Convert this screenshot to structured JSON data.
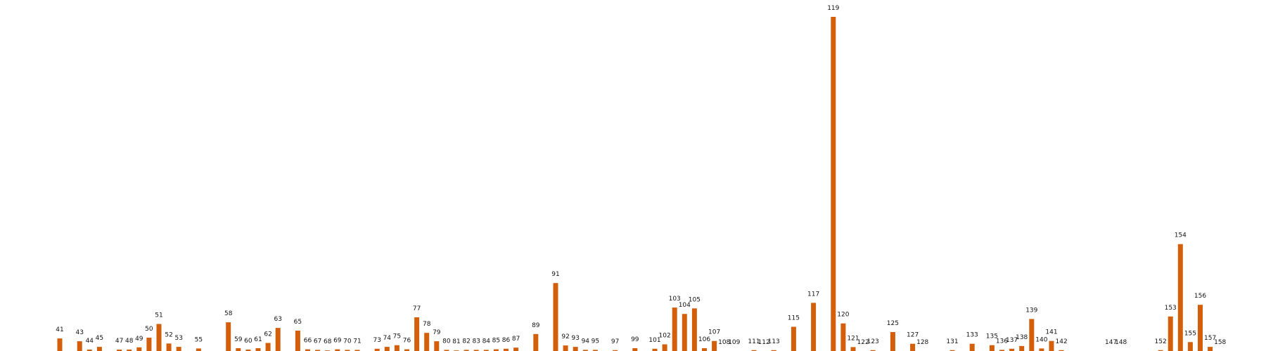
{
  "chart_data": {
    "type": "bar",
    "title": "",
    "xlabel": "",
    "ylabel": "",
    "grid": false,
    "bar_color": "#d35f0a",
    "background": "#ffffff",
    "ylim": [
      0,
      120
    ],
    "bars": [
      {
        "label": "41",
        "value": 4.5
      },
      {
        "label": "43",
        "value": 3.5
      },
      {
        "label": "44",
        "value": 0.5
      },
      {
        "label": "45",
        "value": 1.5
      },
      {
        "label": "47",
        "value": 0.5
      },
      {
        "label": "48",
        "value": 0.5
      },
      {
        "label": "49",
        "value": 1.3
      },
      {
        "label": "50",
        "value": 4.8
      },
      {
        "label": "51",
        "value": 9.7
      },
      {
        "label": "52",
        "value": 2.7
      },
      {
        "label": "53",
        "value": 1.5
      },
      {
        "label": "55",
        "value": 0.9
      },
      {
        "label": "58",
        "value": 10.3
      },
      {
        "label": "59",
        "value": 1.0
      },
      {
        "label": "60",
        "value": 0.5
      },
      {
        "label": "61",
        "value": 1.0
      },
      {
        "label": "62",
        "value": 2.9
      },
      {
        "label": "63",
        "value": 8.3
      },
      {
        "label": "65",
        "value": 7.3
      },
      {
        "label": "66",
        "value": 0.6
      },
      {
        "label": "67",
        "value": 0.4
      },
      {
        "label": "68",
        "value": 0.2
      },
      {
        "label": "69",
        "value": 0.6
      },
      {
        "label": "70",
        "value": 0.4
      },
      {
        "label": "71",
        "value": 0.4
      },
      {
        "label": "73",
        "value": 0.8
      },
      {
        "label": "74",
        "value": 1.5
      },
      {
        "label": "75",
        "value": 2.1
      },
      {
        "label": "76",
        "value": 0.6
      },
      {
        "label": "77",
        "value": 12.1
      },
      {
        "label": "78",
        "value": 6.5
      },
      {
        "label": "79",
        "value": 3.5
      },
      {
        "label": "80",
        "value": 0.4
      },
      {
        "label": "81",
        "value": 0.2
      },
      {
        "label": "82",
        "value": 0.4
      },
      {
        "label": "83",
        "value": 0.4
      },
      {
        "label": "84",
        "value": 0.4
      },
      {
        "label": "85",
        "value": 0.6
      },
      {
        "label": "86",
        "value": 0.8
      },
      {
        "label": "87",
        "value": 1.2
      },
      {
        "label": "89",
        "value": 6.1
      },
      {
        "label": "91",
        "value": 24.4
      },
      {
        "label": "92",
        "value": 2.0
      },
      {
        "label": "93",
        "value": 1.5
      },
      {
        "label": "94",
        "value": 0.4
      },
      {
        "label": "95",
        "value": 0.4
      },
      {
        "label": "97",
        "value": 0.3
      },
      {
        "label": "99",
        "value": 1.0
      },
      {
        "label": "101",
        "value": 0.8
      },
      {
        "label": "102",
        "value": 2.4
      },
      {
        "label": "103",
        "value": 15.6
      },
      {
        "label": "104",
        "value": 13.3
      },
      {
        "label": "105",
        "value": 15.3
      },
      {
        "label": "106",
        "value": 1.0
      },
      {
        "label": "107",
        "value": 3.6
      },
      {
        "label": "108",
        "value": 0
      },
      {
        "label": "109",
        "value": 0
      },
      {
        "label": "111",
        "value": 0.3
      },
      {
        "label": "112",
        "value": 0
      },
      {
        "label": "113",
        "value": 0.3
      },
      {
        "label": "115",
        "value": 8.7
      },
      {
        "label": "117",
        "value": 17.3
      },
      {
        "label": "119",
        "value": 120.0
      },
      {
        "label": "120",
        "value": 9.9
      },
      {
        "label": "121",
        "value": 1.4
      },
      {
        "label": "122",
        "value": 0
      },
      {
        "label": "123",
        "value": 0.3
      },
      {
        "label": "125",
        "value": 6.8
      },
      {
        "label": "127",
        "value": 2.6
      },
      {
        "label": "128",
        "value": 0
      },
      {
        "label": "131",
        "value": 0.3
      },
      {
        "label": "133",
        "value": 2.6
      },
      {
        "label": "135",
        "value": 2.1
      },
      {
        "label": "136",
        "value": 0.4
      },
      {
        "label": "137",
        "value": 0.8
      },
      {
        "label": "138",
        "value": 1.8
      },
      {
        "label": "139",
        "value": 11.5
      },
      {
        "label": "140",
        "value": 0.9
      },
      {
        "label": "141",
        "value": 3.6
      },
      {
        "label": "142",
        "value": 0.3
      },
      {
        "label": "147",
        "value": 0
      },
      {
        "label": "148",
        "value": 0
      },
      {
        "label": "152",
        "value": 0.3
      },
      {
        "label": "153",
        "value": 12.4
      },
      {
        "label": "154",
        "value": 38.4
      },
      {
        "label": "155",
        "value": 3.2
      },
      {
        "label": "156",
        "value": 16.6
      },
      {
        "label": "157",
        "value": 1.5
      },
      {
        "label": "158",
        "value": 0
      }
    ]
  }
}
